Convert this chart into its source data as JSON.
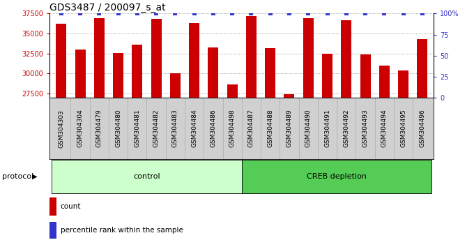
{
  "title": "GDS3487 / 200097_s_at",
  "categories": [
    "GSM304303",
    "GSM304304",
    "GSM304479",
    "GSM304480",
    "GSM304481",
    "GSM304482",
    "GSM304483",
    "GSM304484",
    "GSM304486",
    "GSM304498",
    "GSM304487",
    "GSM304488",
    "GSM304489",
    "GSM304490",
    "GSM304491",
    "GSM304492",
    "GSM304493",
    "GSM304494",
    "GSM304495",
    "GSM304496"
  ],
  "values": [
    36200,
    33000,
    36900,
    32600,
    33600,
    36800,
    30000,
    36300,
    33300,
    28600,
    37200,
    33200,
    27400,
    36900,
    32500,
    36700,
    32400,
    31000,
    30400,
    34300
  ],
  "percentile_ranks": [
    100,
    100,
    100,
    100,
    100,
    100,
    100,
    100,
    100,
    100,
    100,
    100,
    100,
    100,
    100,
    100,
    100,
    100,
    100,
    100
  ],
  "control_count": 10,
  "creb_count": 10,
  "ylim_left": [
    27000,
    37500
  ],
  "ylim_right": [
    0,
    100
  ],
  "yticks_left": [
    27500,
    30000,
    32500,
    35000,
    37500
  ],
  "yticks_right": [
    0,
    25,
    50,
    75,
    100
  ],
  "bar_color": "#cc0000",
  "dot_color": "#3333cc",
  "control_color": "#ccffcc",
  "creb_color": "#55cc55",
  "control_label": "control",
  "creb_label": "CREB depletion",
  "protocol_label": "protocol",
  "legend_count": "count",
  "legend_percentile": "percentile rank within the sample",
  "xtick_bg_color": "#d0d0d0",
  "title_fontsize": 10,
  "tick_fontsize": 7,
  "bar_width": 0.55
}
